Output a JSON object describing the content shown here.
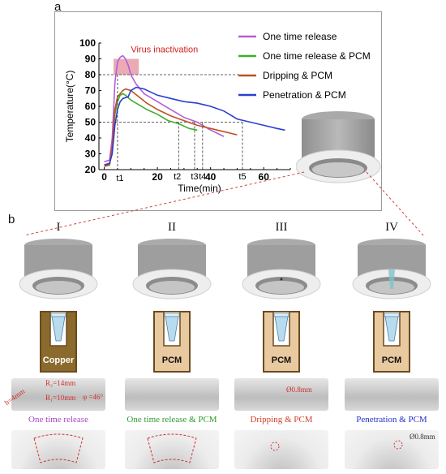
{
  "panel_a_label": "a",
  "panel_b_label": "b",
  "chart_data": {
    "type": "line",
    "xlabel": "Time(min)",
    "ylabel": "Temperature(°C)",
    "xlim": [
      -2,
      70
    ],
    "ylim": [
      20,
      100
    ],
    "xticks": [
      0,
      20,
      40,
      60
    ],
    "yticks": [
      20,
      30,
      40,
      50,
      60,
      70,
      80,
      90,
      100
    ],
    "annotation": "Virus inactivation",
    "marker_labels": [
      "t1",
      "t2",
      "t3",
      "t4",
      "t5"
    ],
    "marker_x": [
      5,
      28,
      34,
      37,
      52
    ],
    "reference_lines_y": [
      80,
      50
    ],
    "series": [
      {
        "name": "One time release",
        "color": "#b25fd6",
        "points": [
          [
            0,
            25
          ],
          [
            2,
            26
          ],
          [
            3,
            40
          ],
          [
            4,
            75
          ],
          [
            5,
            88
          ],
          [
            6,
            91
          ],
          [
            7,
            92
          ],
          [
            8,
            90
          ],
          [
            9,
            86
          ],
          [
            10,
            80
          ],
          [
            12,
            74
          ],
          [
            15,
            68
          ],
          [
            20,
            63
          ],
          [
            25,
            58
          ],
          [
            30,
            53
          ],
          [
            35,
            50
          ],
          [
            40,
            45
          ],
          [
            45,
            41
          ]
        ]
      },
      {
        "name": "One time release & PCM",
        "color": "#3fae2f",
        "points": [
          [
            0,
            23
          ],
          [
            2,
            23
          ],
          [
            3,
            33
          ],
          [
            4,
            55
          ],
          [
            5,
            63
          ],
          [
            6,
            67
          ],
          [
            7,
            68
          ],
          [
            8,
            67
          ],
          [
            10,
            64
          ],
          [
            13,
            61
          ],
          [
            16,
            58
          ],
          [
            20,
            55
          ],
          [
            24,
            51
          ],
          [
            28,
            49
          ],
          [
            32,
            46
          ],
          [
            35,
            45
          ]
        ]
      },
      {
        "name": "Dripping & PCM",
        "color": "#c0501e",
        "points": [
          [
            0,
            22
          ],
          [
            2,
            23
          ],
          [
            3,
            35
          ],
          [
            4,
            58
          ],
          [
            5,
            66
          ],
          [
            6,
            68
          ],
          [
            7,
            70
          ],
          [
            8,
            71
          ],
          [
            10,
            70
          ],
          [
            13,
            66
          ],
          [
            16,
            62
          ],
          [
            20,
            58
          ],
          [
            25,
            54
          ],
          [
            30,
            51
          ],
          [
            35,
            48
          ],
          [
            40,
            46
          ],
          [
            45,
            44
          ],
          [
            50,
            42
          ]
        ]
      },
      {
        "name": "Penetration & PCM",
        "color": "#2b3fd0",
        "points": [
          [
            0,
            23
          ],
          [
            2,
            24
          ],
          [
            3,
            30
          ],
          [
            4,
            48
          ],
          [
            5,
            58
          ],
          [
            6,
            63
          ],
          [
            7,
            65
          ],
          [
            9,
            66
          ],
          [
            10,
            70
          ],
          [
            12,
            72
          ],
          [
            15,
            71
          ],
          [
            20,
            67
          ],
          [
            25,
            65
          ],
          [
            30,
            63
          ],
          [
            35,
            62
          ],
          [
            40,
            60
          ],
          [
            45,
            57
          ],
          [
            50,
            52
          ],
          [
            55,
            50
          ],
          [
            60,
            48
          ],
          [
            65,
            46
          ],
          [
            68,
            45
          ]
        ]
      }
    ]
  },
  "groups": [
    {
      "roman": "I",
      "box_label": "Copper",
      "box_color": "#8b6a2e",
      "caption": "One time release",
      "caption_color": "#a646c8",
      "dims": [
        "R₂=14mm",
        "R₁=10mm",
        "h=4mm",
        "φ =46°"
      ]
    },
    {
      "roman": "II",
      "box_label": "PCM",
      "box_color": "#e9c9a0",
      "caption": "One time release & PCM",
      "caption_color": "#2e9a2e"
    },
    {
      "roman": "III",
      "box_label": "PCM",
      "box_color": "#e9c9a0",
      "caption": "Dripping & PCM",
      "caption_color": "#d0402a",
      "dims": [
        "Ø0.8mm"
      ]
    },
    {
      "roman": "IV",
      "box_label": "PCM",
      "box_color": "#e9c9a0",
      "caption": "Penetration & PCM",
      "caption_color": "#2430c8",
      "dims": [
        "Ø0.8mm"
      ]
    }
  ]
}
